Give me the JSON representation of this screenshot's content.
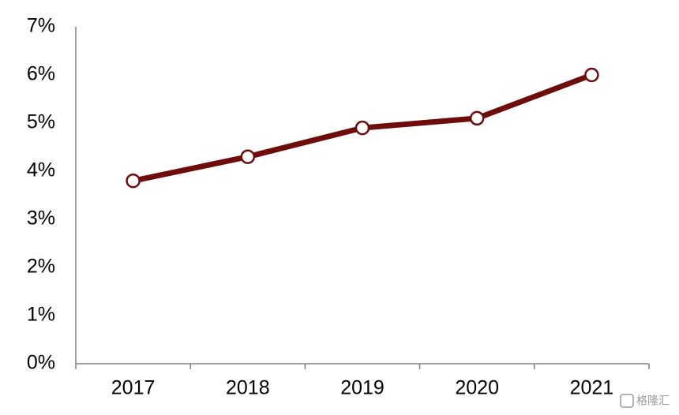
{
  "chart_data": {
    "type": "line",
    "categories": [
      "2017",
      "2018",
      "2019",
      "2020",
      "2021"
    ],
    "values": [
      3.8,
      4.3,
      4.9,
      5.1,
      6.0
    ],
    "color": "#6e0c0c",
    "ylim": [
      0,
      7
    ],
    "yticks": [
      {
        "value": 0,
        "label": "0%"
      },
      {
        "value": 1,
        "label": "1%"
      },
      {
        "value": 2,
        "label": "2%"
      },
      {
        "value": 3,
        "label": "3%"
      },
      {
        "value": 4,
        "label": "4%"
      },
      {
        "value": 5,
        "label": "5%"
      },
      {
        "value": 6,
        "label": "6%"
      },
      {
        "value": 7,
        "label": "7%"
      }
    ],
    "grid": false,
    "watermark": "格隆汇"
  }
}
